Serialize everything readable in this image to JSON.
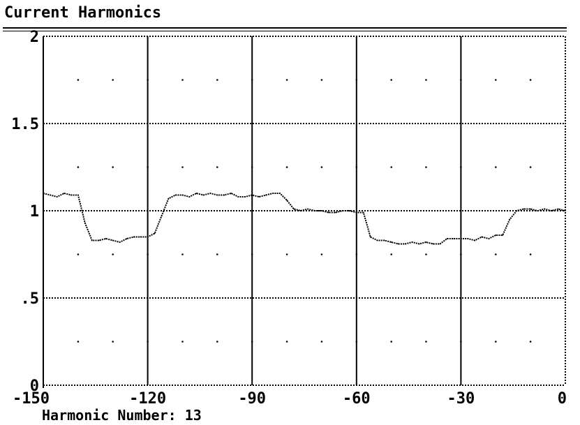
{
  "title": "Current Harmonics",
  "footer": {
    "label": "Harmonic Number:",
    "value": "13"
  },
  "colors": {
    "background": "#ffffff",
    "ink": "#000000"
  },
  "chart_data": {
    "type": "line",
    "xlim": [
      -150,
      0
    ],
    "ylim": [
      0,
      2
    ],
    "x_ticks": [
      -150,
      -120,
      -90,
      -60,
      -30,
      0
    ],
    "x_tick_labels": [
      "-150",
      "-120",
      "-90",
      "-60",
      "-30",
      "0"
    ],
    "y_ticks": [
      0,
      0.5,
      1,
      1.5,
      2
    ],
    "y_tick_labels": [
      "0",
      ".5",
      "1",
      "1.5",
      "2"
    ],
    "grid": true,
    "series": [
      {
        "x": [
          -150,
          -148,
          -146,
          -144,
          -142,
          -140,
          -138,
          -136,
          -134,
          -132,
          -130,
          -128,
          -126,
          -124,
          -122,
          -120,
          -118,
          -116,
          -114,
          -112,
          -110,
          -108,
          -106,
          -104,
          -102,
          -100,
          -98,
          -96,
          -94,
          -92,
          -90,
          -88,
          -86,
          -84,
          -82,
          -80,
          -78,
          -76,
          -74,
          -72,
          -70,
          -68,
          -66,
          -64,
          -62,
          -60,
          -58,
          -56,
          -54,
          -52,
          -50,
          -48,
          -46,
          -44,
          -42,
          -40,
          -38,
          -36,
          -34,
          -32,
          -30,
          -28,
          -26,
          -24,
          -22,
          -20,
          -18,
          -16,
          -14,
          -12,
          -10,
          -8,
          -6,
          -4,
          -2,
          0
        ],
        "y": [
          1.1,
          1.09,
          1.08,
          1.1,
          1.09,
          1.09,
          0.93,
          0.83,
          0.83,
          0.84,
          0.83,
          0.82,
          0.84,
          0.85,
          0.85,
          0.85,
          0.87,
          0.97,
          1.07,
          1.09,
          1.09,
          1.08,
          1.1,
          1.09,
          1.1,
          1.09,
          1.09,
          1.1,
          1.08,
          1.08,
          1.09,
          1.08,
          1.09,
          1.1,
          1.1,
          1.06,
          1.01,
          1.0,
          1.01,
          1.0,
          1.0,
          0.99,
          0.99,
          1.0,
          1.0,
          0.99,
          0.99,
          0.85,
          0.83,
          0.83,
          0.82,
          0.81,
          0.81,
          0.82,
          0.81,
          0.82,
          0.81,
          0.81,
          0.84,
          0.84,
          0.84,
          0.84,
          0.83,
          0.85,
          0.84,
          0.86,
          0.86,
          0.95,
          1.0,
          1.01,
          1.01,
          1.0,
          1.01,
          1.0,
          1.01,
          1.0
        ]
      }
    ]
  }
}
